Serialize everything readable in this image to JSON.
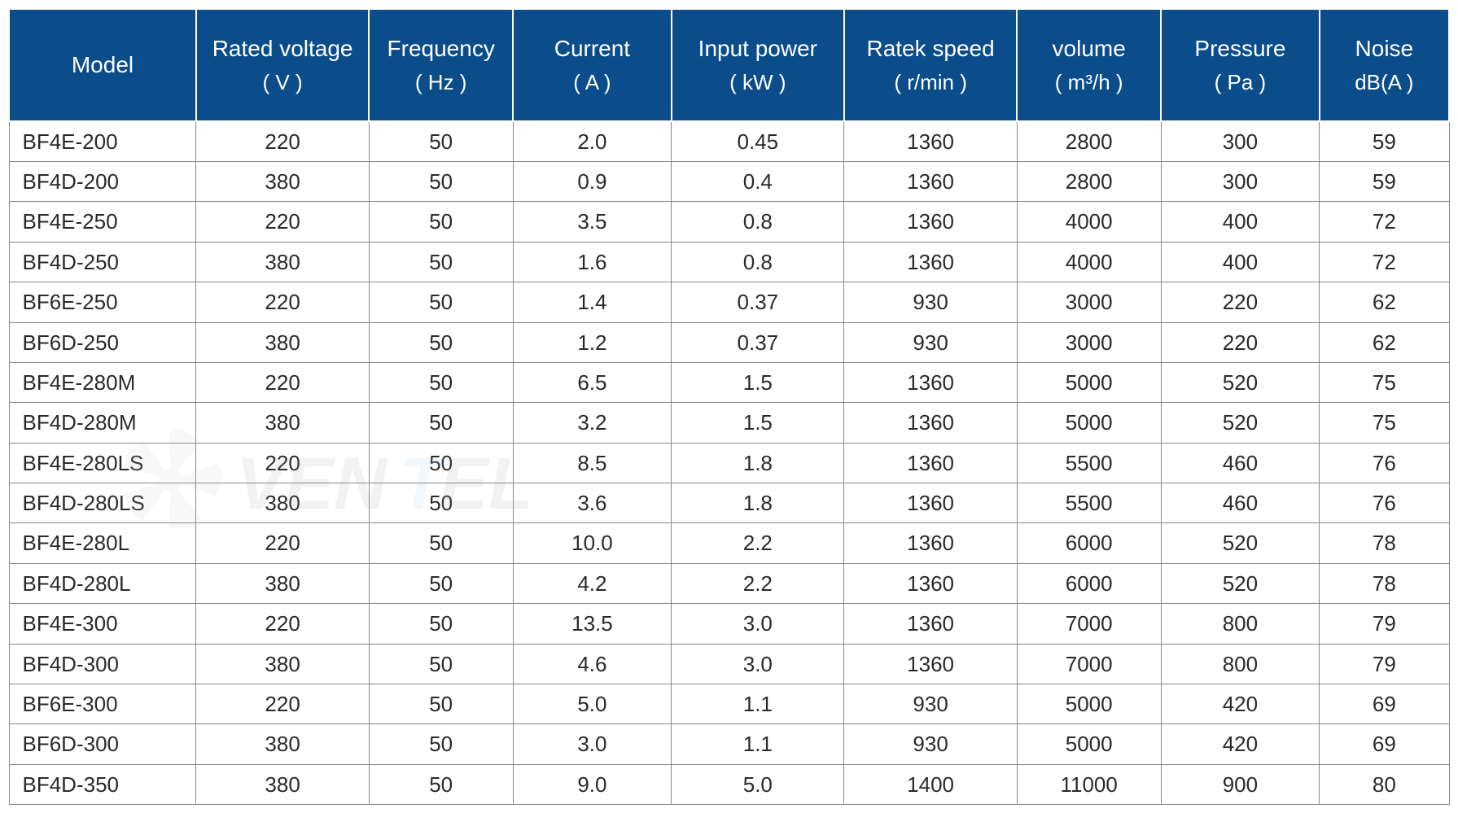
{
  "table": {
    "type": "table",
    "header_bg": "#0b4c8b",
    "header_text_color": "#ffffff",
    "header_border_color": "#ffffff",
    "cell_border_color": "#888888",
    "cell_text_color": "#2a2a2a",
    "header_fontsize": 28,
    "cell_fontsize": 26,
    "column_widths_pct": [
      13,
      12,
      10,
      11,
      12,
      12,
      10,
      11,
      9
    ],
    "columns": [
      {
        "label": "Model",
        "unit": ""
      },
      {
        "label": "Rated voltage",
        "unit": "( V )"
      },
      {
        "label": "Frequency",
        "unit": "( Hz )"
      },
      {
        "label": "Current",
        "unit": "( A )"
      },
      {
        "label": "Input power",
        "unit": "( kW )"
      },
      {
        "label": "Ratek speed",
        "unit": "( r/min )"
      },
      {
        "label": "volume",
        "unit": "( m³/h )"
      },
      {
        "label": "Pressure",
        "unit": "( Pa )"
      },
      {
        "label": "Noise",
        "unit": "dB(A )"
      }
    ],
    "rows": [
      [
        "BF4E-200",
        "220",
        "50",
        "2.0",
        "0.45",
        "1360",
        "2800",
        "300",
        "59"
      ],
      [
        "BF4D-200",
        "380",
        "50",
        "0.9",
        "0.4",
        "1360",
        "2800",
        "300",
        "59"
      ],
      [
        "BF4E-250",
        "220",
        "50",
        "3.5",
        "0.8",
        "1360",
        "4000",
        "400",
        "72"
      ],
      [
        "BF4D-250",
        "380",
        "50",
        "1.6",
        "0.8",
        "1360",
        "4000",
        "400",
        "72"
      ],
      [
        "BF6E-250",
        "220",
        "50",
        "1.4",
        "0.37",
        "930",
        "3000",
        "220",
        "62"
      ],
      [
        "BF6D-250",
        "380",
        "50",
        "1.2",
        "0.37",
        "930",
        "3000",
        "220",
        "62"
      ],
      [
        "BF4E-280M",
        "220",
        "50",
        "6.5",
        "1.5",
        "1360",
        "5000",
        "520",
        "75"
      ],
      [
        "BF4D-280M",
        "380",
        "50",
        "3.2",
        "1.5",
        "1360",
        "5000",
        "520",
        "75"
      ],
      [
        "BF4E-280LS",
        "220",
        "50",
        "8.5",
        "1.8",
        "1360",
        "5500",
        "460",
        "76"
      ],
      [
        "BF4D-280LS",
        "380",
        "50",
        "3.6",
        "1.8",
        "1360",
        "5500",
        "460",
        "76"
      ],
      [
        "BF4E-280L",
        "220",
        "50",
        "10.0",
        "2.2",
        "1360",
        "6000",
        "520",
        "78"
      ],
      [
        "BF4D-280L",
        "380",
        "50",
        "4.2",
        "2.2",
        "1360",
        "6000",
        "520",
        "78"
      ],
      [
        "BF4E-300",
        "220",
        "50",
        "13.5",
        "3.0",
        "1360",
        "7000",
        "800",
        "79"
      ],
      [
        "BF4D-300",
        "380",
        "50",
        "4.6",
        "3.0",
        "1360",
        "7000",
        "800",
        "79"
      ],
      [
        "BF6E-300",
        "220",
        "50",
        "5.0",
        "1.1",
        "930",
        "5000",
        "420",
        "69"
      ],
      [
        "BF6D-300",
        "380",
        "50",
        "3.0",
        "1.1",
        "930",
        "5000",
        "420",
        "69"
      ],
      [
        "BF4D-350",
        "380",
        "50",
        "9.0",
        "5.0",
        "1400",
        "11000",
        "900",
        "80"
      ]
    ]
  },
  "watermark": {
    "text": "VENTEL",
    "fan_color": "#c8c8c8",
    "text_color_dark": "#9a9a9a",
    "text_color_accent": "#9bc6ea",
    "opacity": 0.12
  }
}
